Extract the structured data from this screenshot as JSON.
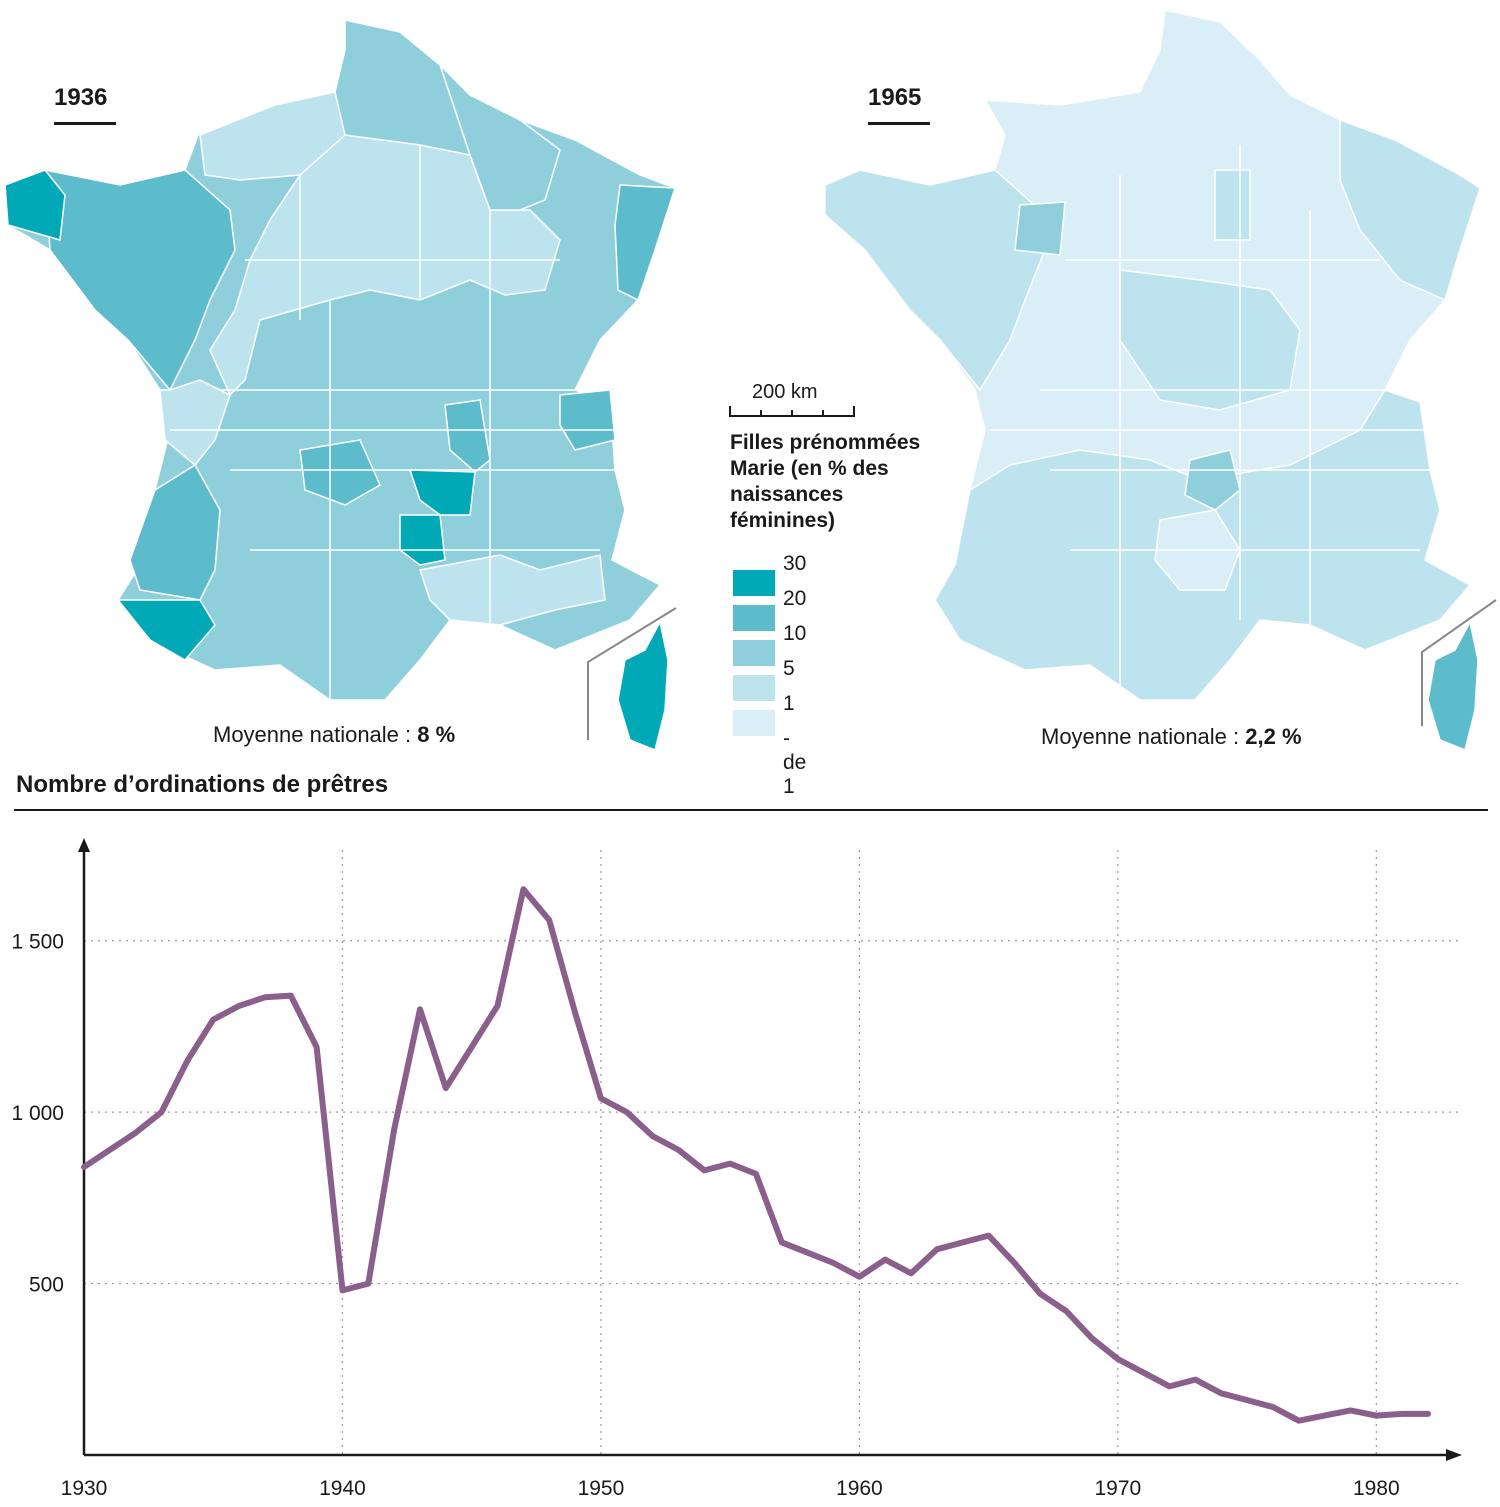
{
  "maps": {
    "left": {
      "year": "1936",
      "avg_label": "Moyenne nationale :",
      "avg_value": "8 %"
    },
    "right": {
      "year": "1965",
      "avg_label": "Moyenne nationale :",
      "avg_value": "2,2 %"
    }
  },
  "scale": {
    "label": "200 km"
  },
  "legend": {
    "title": "Filles prénommées\nMarie (en % des\nnaissances\nféminines)",
    "classes": [
      {
        "label": "30",
        "color": "#00a9b5"
      },
      {
        "label": "20",
        "color": "#5dbccb"
      },
      {
        "label": "10",
        "color": "#8fcfdc"
      },
      {
        "label": "5",
        "color": "#bde3ef"
      },
      {
        "label": "1",
        "color": "#daeef7"
      },
      {
        "label": "- de 1",
        "color": "#daeef7"
      }
    ],
    "line_color": "#8a5f8c"
  },
  "chart_data": {
    "type": "line",
    "title": "Nombre d’ordinations de prêtres",
    "xlabel": "",
    "ylabel": "",
    "xlim": [
      1930,
      1983
    ],
    "ylim": [
      0,
      1750
    ],
    "x_ticks": [
      1930,
      1940,
      1950,
      1960,
      1970,
      1980
    ],
    "x_tick_labels": [
      "1930",
      "1940",
      "1950",
      "1960",
      "1970",
      "1980"
    ],
    "y_ticks": [
      500,
      1000,
      1500
    ],
    "y_tick_labels": [
      "500",
      "1 000",
      "1 500"
    ],
    "grid": true,
    "series": [
      {
        "color": "#8a5f8c",
        "x": [
          1930,
          1931,
          1932,
          1933,
          1934,
          1935,
          1936,
          1937,
          1938,
          1939,
          1940,
          1941,
          1942,
          1943,
          1944,
          1945,
          1946,
          1947,
          1948,
          1949,
          1950,
          1951,
          1952,
          1953,
          1954,
          1955,
          1956,
          1957,
          1958,
          1959,
          1960,
          1961,
          1962,
          1963,
          1964,
          1965,
          1966,
          1967,
          1968,
          1969,
          1970,
          1971,
          1972,
          1973,
          1974,
          1975,
          1976,
          1977,
          1978,
          1979,
          1980,
          1981,
          1982
        ],
        "y": [
          840,
          890,
          940,
          1000,
          1150,
          1270,
          1310,
          1335,
          1340,
          1190,
          480,
          500,
          950,
          1300,
          1070,
          1190,
          1310,
          1650,
          1560,
          1290,
          1040,
          1000,
          930,
          890,
          830,
          850,
          820,
          620,
          590,
          560,
          520,
          570,
          530,
          600,
          620,
          640,
          560,
          470,
          420,
          340,
          280,
          240,
          200,
          220,
          180,
          160,
          140,
          100,
          115,
          130,
          115,
          120,
          120
        ]
      }
    ]
  }
}
